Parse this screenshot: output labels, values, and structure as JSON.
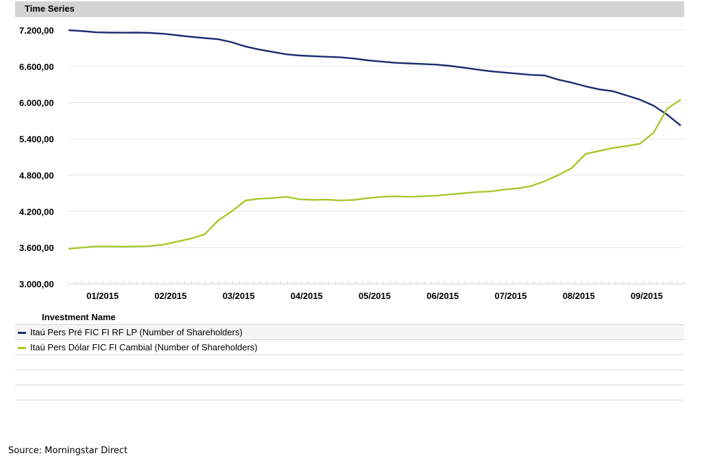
{
  "header": {
    "title": "Time Series"
  },
  "legend": {
    "header": "Investment Name",
    "items": [
      {
        "label": "Itaú Pers Pré FIC FI RF LP (Number of Shareholders)",
        "color": "#1a2a6c"
      },
      {
        "label": "Itaú Pers Dólar FIC FI Cambial (Number of Shareholders)",
        "color": "#a6c82a"
      }
    ]
  },
  "footer": {
    "source": "Source: Morningstar Direct"
  },
  "chart_data": {
    "type": "line",
    "title": "Time Series",
    "xlabel": "",
    "ylabel": "",
    "ylim": [
      3000,
      7200
    ],
    "yticks": [
      "7.200,00",
      "6.600,00",
      "6.000,00",
      "5.400,00",
      "4.800,00",
      "4.200,00",
      "3.600,00",
      "3.000,00"
    ],
    "ytick_values": [
      7200,
      6600,
      6000,
      5400,
      4800,
      4200,
      3600,
      3000
    ],
    "xlim": [
      0,
      9.05
    ],
    "xticks": [
      "01/2015",
      "02/2015",
      "03/2015",
      "04/2015",
      "05/2015",
      "06/2015",
      "07/2015",
      "08/2015",
      "09/2015"
    ],
    "xtick_values": [
      0.5,
      1.5,
      2.5,
      3.5,
      4.5,
      5.5,
      6.5,
      7.5,
      8.5
    ],
    "grid": true,
    "legend_position": "bottom",
    "series": [
      {
        "name": "Itaú Pers Pré FIC FI RF LP (Number of Shareholders)",
        "color": "#1a2a6c",
        "x": [
          0.0,
          0.2,
          0.4,
          0.6,
          0.8,
          1.0,
          1.2,
          1.4,
          1.6,
          1.8,
          2.0,
          2.2,
          2.4,
          2.6,
          2.8,
          3.0,
          3.2,
          3.4,
          3.6,
          3.8,
          4.0,
          4.2,
          4.4,
          4.6,
          4.8,
          5.0,
          5.2,
          5.4,
          5.6,
          5.8,
          6.0,
          6.2,
          6.4,
          6.6,
          6.8,
          7.0,
          7.2,
          7.4,
          7.6,
          7.8,
          8.0,
          8.2,
          8.4,
          8.6,
          8.8,
          9.0
        ],
        "values": [
          7200,
          7185,
          7165,
          7160,
          7158,
          7160,
          7155,
          7140,
          7115,
          7090,
          7070,
          7050,
          7000,
          6930,
          6880,
          6840,
          6800,
          6780,
          6770,
          6760,
          6750,
          6730,
          6700,
          6680,
          6660,
          6650,
          6640,
          6630,
          6610,
          6580,
          6550,
          6520,
          6500,
          6480,
          6460,
          6450,
          6380,
          6330,
          6270,
          6220,
          6190,
          6120,
          6050,
          5950,
          5800,
          5620
        ]
      },
      {
        "name": "Itaú Pers Dólar FIC FI Cambial (Number of Shareholders)",
        "color": "#a6c82a",
        "x": [
          0.0,
          0.2,
          0.4,
          0.6,
          0.8,
          1.0,
          1.2,
          1.4,
          1.6,
          1.8,
          2.0,
          2.2,
          2.4,
          2.6,
          2.8,
          3.0,
          3.2,
          3.4,
          3.6,
          3.8,
          4.0,
          4.2,
          4.4,
          4.6,
          4.8,
          5.0,
          5.2,
          5.4,
          5.6,
          5.8,
          6.0,
          6.2,
          6.4,
          6.6,
          6.8,
          7.0,
          7.2,
          7.4,
          7.6,
          7.8,
          8.0,
          8.2,
          8.4,
          8.6,
          8.8,
          9.0
        ],
        "values": [
          3580,
          3600,
          3620,
          3620,
          3615,
          3620,
          3625,
          3650,
          3700,
          3750,
          3820,
          4050,
          4200,
          4380,
          4410,
          4420,
          4440,
          4400,
          4390,
          4395,
          4380,
          4390,
          4420,
          4440,
          4450,
          4440,
          4450,
          4460,
          4480,
          4500,
          4520,
          4530,
          4560,
          4580,
          4620,
          4700,
          4800,
          4920,
          5150,
          5200,
          5250,
          5280,
          5320,
          5500,
          5900,
          6050
        ]
      }
    ]
  }
}
